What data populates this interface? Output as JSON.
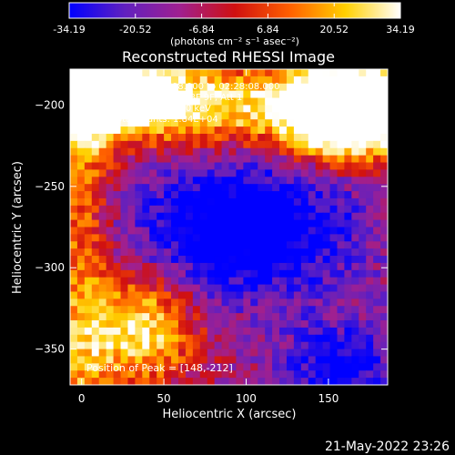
{
  "chart_data": {
    "type": "heatmap",
    "title": "Reconstructed RHESSI Image",
    "xlabel": "Heliocentric X (arcsec)",
    "ylabel": "Heliocentric Y (arcsec)",
    "xlim": [
      -7,
      186
    ],
    "ylim": [
      -372,
      -178
    ],
    "x_ticks": [
      0,
      50,
      100,
      150
    ],
    "y_ticks": [
      -200,
      -250,
      -300,
      -350
    ],
    "annotations": [
      "18-Jun-2015 02:22:08.000 to 02:28:08.000",
      "Detectors: 3F 5F 6F 7F 8F 9F, Att 1",
      "Energy Range: 3.0 - 6.0 keV",
      "Clean    Total counts: 1.84E+04"
    ],
    "peak_label": "Position of Peak = [148,-212]",
    "peak": [
      148,
      -212
    ],
    "colorbar": {
      "min": -34.19,
      "max": 34.19,
      "tick_labels": [
        "-34.19",
        "-20.52",
        "-6.84",
        "6.84",
        "20.52",
        "34.19"
      ],
      "tick_values": [
        -34.19,
        -20.52,
        -6.84,
        6.84,
        20.52,
        34.19
      ],
      "unit_label": "(photons cm⁻² s⁻¹ asec⁻²)",
      "colors": [
        "#0000ff",
        "#6020c0",
        "#a02090",
        "#d01010",
        "#ff6000",
        "#ffd000",
        "#ffffff"
      ]
    },
    "timestamp": "21-May-2022 23:26"
  }
}
